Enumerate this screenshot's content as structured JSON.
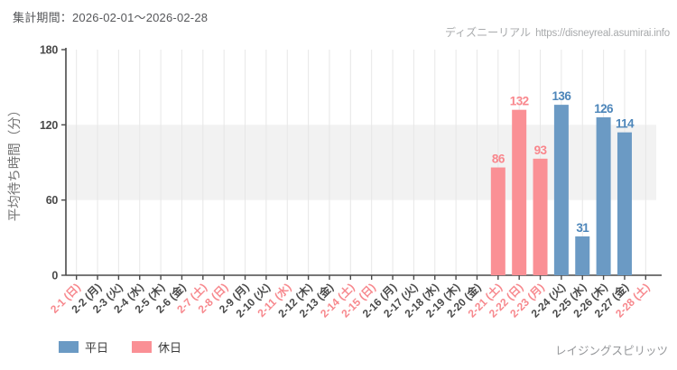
{
  "header": {
    "period": "集計期間：2026-02-01～2026-02-28"
  },
  "watermark": {
    "site": "ディズニーリアル",
    "url": "https://disneyreal.asumirai.info"
  },
  "legend": {
    "items": [
      {
        "label": "平日",
        "series": "weekday"
      },
      {
        "label": "休日",
        "series": "holiday"
      }
    ]
  },
  "footer": {
    "attraction": "レイジングスピリッツ"
  },
  "colors": {
    "weekday_bar": "#6b9ac4",
    "holiday_bar": "#fa9095",
    "weekday_value_label": "#4d86ba",
    "holiday_value_label": "#f9868c",
    "tick_label_red": "#f7888d",
    "tick_label_dark": "#4a4a4a",
    "shaded_band": "#f2f2f2",
    "gridline": "#e7e7e7",
    "axis": "#4a4a4a",
    "y_axis_title": "#737373"
  },
  "chart_data": {
    "type": "bar",
    "title": "",
    "xlabel": "",
    "ylabel": "平均待ち時間（分）",
    "ylim": [
      0,
      180
    ],
    "yticks": [
      0,
      60,
      120,
      180
    ],
    "shaded_band": [
      60,
      120
    ],
    "grid": "vertical",
    "legend_position": "bottom-left",
    "series_names": {
      "weekday": "平日",
      "holiday": "休日"
    },
    "categories": [
      {
        "label": "2-1 (日)",
        "red": true,
        "value": null,
        "series": null
      },
      {
        "label": "2-2 (月)",
        "red": false,
        "value": null,
        "series": null
      },
      {
        "label": "2-3 (火)",
        "red": false,
        "value": null,
        "series": null
      },
      {
        "label": "2-4 (水)",
        "red": false,
        "value": null,
        "series": null
      },
      {
        "label": "2-5 (木)",
        "red": false,
        "value": null,
        "series": null
      },
      {
        "label": "2-6 (金)",
        "red": false,
        "value": null,
        "series": null
      },
      {
        "label": "2-7 (土)",
        "red": true,
        "value": null,
        "series": null
      },
      {
        "label": "2-8 (日)",
        "red": true,
        "value": null,
        "series": null
      },
      {
        "label": "2-9 (月)",
        "red": false,
        "value": null,
        "series": null
      },
      {
        "label": "2-10 (火)",
        "red": false,
        "value": null,
        "series": null
      },
      {
        "label": "2-11 (水)",
        "red": true,
        "value": null,
        "series": null
      },
      {
        "label": "2-12 (木)",
        "red": false,
        "value": null,
        "series": null
      },
      {
        "label": "2-13 (金)",
        "red": false,
        "value": null,
        "series": null
      },
      {
        "label": "2-14 (土)",
        "red": true,
        "value": null,
        "series": null
      },
      {
        "label": "2-15 (日)",
        "red": true,
        "value": null,
        "series": null
      },
      {
        "label": "2-16 (月)",
        "red": false,
        "value": null,
        "series": null
      },
      {
        "label": "2-17 (火)",
        "red": false,
        "value": null,
        "series": null
      },
      {
        "label": "2-18 (水)",
        "red": false,
        "value": null,
        "series": null
      },
      {
        "label": "2-19 (木)",
        "red": false,
        "value": null,
        "series": null
      },
      {
        "label": "2-20 (金)",
        "red": false,
        "value": null,
        "series": null
      },
      {
        "label": "2-21 (土)",
        "red": true,
        "value": 86,
        "series": "holiday"
      },
      {
        "label": "2-22 (日)",
        "red": true,
        "value": 132,
        "series": "holiday"
      },
      {
        "label": "2-23 (月)",
        "red": true,
        "value": 93,
        "series": "holiday"
      },
      {
        "label": "2-24 (火)",
        "red": false,
        "value": 136,
        "series": "weekday"
      },
      {
        "label": "2-25 (水)",
        "red": false,
        "value": 31,
        "series": "weekday"
      },
      {
        "label": "2-26 (木)",
        "red": false,
        "value": 126,
        "series": "weekday"
      },
      {
        "label": "2-27 (金)",
        "red": false,
        "value": 114,
        "series": "weekday"
      },
      {
        "label": "2-28 (土)",
        "red": true,
        "value": null,
        "series": null
      }
    ]
  }
}
